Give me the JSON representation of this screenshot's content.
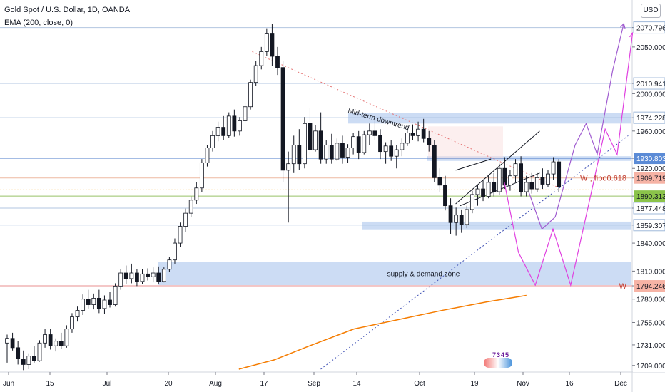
{
  "header": {
    "title": "Gold Spot / U.S. Dollar, 1D, OANDA",
    "indicator": "EMA (200, close, 0)",
    "currency": "USD"
  },
  "logo_text": "7345",
  "chart_data": {
    "type": "candlestick",
    "y_range": [
      1705,
      2100
    ],
    "y_axis_ticks": [
      "2050.000",
      "2010.941",
      "2000.000",
      "1974.228",
      "1960.000",
      "1930.803",
      "1920.000",
      "1909.719",
      "1890.313",
      "1877.448",
      "1859.307",
      "1840.000",
      "1810.000",
      "1794.246",
      "1780.000",
      "1755.000",
      "1731.000",
      "1709.000"
    ],
    "x_axis_ticks": [
      "Jun",
      "15",
      "Jul",
      "20",
      "Aug",
      "17",
      "Sep",
      "14",
      "Oct",
      "19",
      "Nov",
      "16",
      "Dec"
    ],
    "price_labels": [
      {
        "value": 2070.796,
        "text": "2070.796",
        "style": "box"
      },
      {
        "value": 2050.0,
        "text": "2050.000",
        "style": "plain"
      },
      {
        "value": 2010.941,
        "text": "2010.941",
        "style": "box"
      },
      {
        "value": 2000.0,
        "text": "2000.000",
        "style": "plain"
      },
      {
        "value": 1974.228,
        "text": "1974.228",
        "style": "box"
      },
      {
        "value": 1960.0,
        "text": "1960.000",
        "style": "plain"
      },
      {
        "value": 1930.803,
        "text": "1930.803",
        "style": "box-blue"
      },
      {
        "value": 1920.0,
        "text": "1920.000",
        "style": "plain"
      },
      {
        "value": 1909.719,
        "text": "1909.719",
        "style": "box-red"
      },
      {
        "value": 1890.313,
        "text": "1890.313",
        "style": "box-green"
      },
      {
        "value": 1877.448,
        "text": "1877.448",
        "style": "box"
      },
      {
        "value": 1859.307,
        "text": "1859.307",
        "style": "box"
      },
      {
        "value": 1840.0,
        "text": "1840.000",
        "style": "plain"
      },
      {
        "value": 1810.0,
        "text": "1810.000",
        "style": "plain"
      },
      {
        "value": 1794.246,
        "text": "1794.246",
        "style": "box-red"
      },
      {
        "value": 1780.0,
        "text": "1780.000",
        "style": "plain"
      },
      {
        "value": 1755.0,
        "text": "1755.000",
        "style": "plain"
      },
      {
        "value": 1731.0,
        "text": "1731.000",
        "style": "plain"
      },
      {
        "value": 1709.0,
        "text": "1709.000",
        "style": "plain"
      }
    ],
    "horizontal_levels": [
      {
        "value": 2070.796,
        "color": "#9fb8d9"
      },
      {
        "value": 2010.941,
        "color": "#9fb8d9"
      },
      {
        "value": 1974.228,
        "color": "#9fb8d9"
      },
      {
        "value": 1930.803,
        "color": "#4a78c8"
      },
      {
        "value": 1909.719,
        "color": "#e8a88a"
      },
      {
        "value": 1890.313,
        "color": "#7cb342"
      },
      {
        "value": 1877.448,
        "color": "#9fb8d9"
      },
      {
        "value": 1859.307,
        "color": "#9fb8d9"
      },
      {
        "value": 1794.246,
        "color": "#e57373"
      }
    ],
    "zones": [
      {
        "x0": 222,
        "x1": 885,
        "top": 1820,
        "bottom": 1795,
        "label": "supply & demand zone"
      },
      {
        "x0": 508,
        "x1": 885,
        "top": 1863,
        "bottom": 1854,
        "label": ""
      },
      {
        "x0": 488,
        "x1": 885,
        "top": 1979,
        "bottom": 1968,
        "label": ""
      },
      {
        "x0": 598,
        "x1": 885,
        "top": 1933,
        "bottom": 1928,
        "label": ""
      }
    ],
    "annotations": [
      {
        "text": "Mid-term downtrend",
        "color": "#131722"
      },
      {
        "text": "W , fibo0.618",
        "color": "#c0392b"
      },
      {
        "text": "W",
        "color": "#c0392b"
      }
    ],
    "candles": [
      {
        "o": 1733,
        "h": 1742,
        "l": 1712,
        "c": 1738
      },
      {
        "o": 1738,
        "h": 1744,
        "l": 1725,
        "c": 1728
      },
      {
        "o": 1728,
        "h": 1735,
        "l": 1710,
        "c": 1716
      },
      {
        "o": 1716,
        "h": 1725,
        "l": 1704,
        "c": 1710
      },
      {
        "o": 1710,
        "h": 1722,
        "l": 1705,
        "c": 1719
      },
      {
        "o": 1719,
        "h": 1730,
        "l": 1712,
        "c": 1714
      },
      {
        "o": 1714,
        "h": 1736,
        "l": 1713,
        "c": 1733
      },
      {
        "o": 1733,
        "h": 1748,
        "l": 1728,
        "c": 1742
      },
      {
        "o": 1742,
        "h": 1748,
        "l": 1726,
        "c": 1730
      },
      {
        "o": 1730,
        "h": 1738,
        "l": 1724,
        "c": 1735
      },
      {
        "o": 1735,
        "h": 1744,
        "l": 1727,
        "c": 1730
      },
      {
        "o": 1730,
        "h": 1752,
        "l": 1728,
        "c": 1748
      },
      {
        "o": 1748,
        "h": 1765,
        "l": 1744,
        "c": 1761
      },
      {
        "o": 1761,
        "h": 1772,
        "l": 1756,
        "c": 1768
      },
      {
        "o": 1768,
        "h": 1785,
        "l": 1763,
        "c": 1780
      },
      {
        "o": 1780,
        "h": 1790,
        "l": 1770,
        "c": 1774
      },
      {
        "o": 1774,
        "h": 1786,
        "l": 1769,
        "c": 1781
      },
      {
        "o": 1781,
        "h": 1790,
        "l": 1765,
        "c": 1770
      },
      {
        "o": 1770,
        "h": 1784,
        "l": 1764,
        "c": 1779
      },
      {
        "o": 1779,
        "h": 1788,
        "l": 1771,
        "c": 1774
      },
      {
        "o": 1774,
        "h": 1797,
        "l": 1772,
        "c": 1794
      },
      {
        "o": 1794,
        "h": 1812,
        "l": 1790,
        "c": 1808
      },
      {
        "o": 1808,
        "h": 1816,
        "l": 1796,
        "c": 1802
      },
      {
        "o": 1802,
        "h": 1818,
        "l": 1797,
        "c": 1808
      },
      {
        "o": 1808,
        "h": 1812,
        "l": 1794,
        "c": 1799
      },
      {
        "o": 1799,
        "h": 1812,
        "l": 1796,
        "c": 1807
      },
      {
        "o": 1807,
        "h": 1813,
        "l": 1800,
        "c": 1804
      },
      {
        "o": 1804,
        "h": 1814,
        "l": 1798,
        "c": 1808
      },
      {
        "o": 1808,
        "h": 1815,
        "l": 1796,
        "c": 1799
      },
      {
        "o": 1799,
        "h": 1814,
        "l": 1798,
        "c": 1812
      },
      {
        "o": 1812,
        "h": 1825,
        "l": 1809,
        "c": 1822
      },
      {
        "o": 1822,
        "h": 1845,
        "l": 1818,
        "c": 1840
      },
      {
        "o": 1840,
        "h": 1862,
        "l": 1836,
        "c": 1858
      },
      {
        "o": 1858,
        "h": 1877,
        "l": 1852,
        "c": 1872
      },
      {
        "o": 1872,
        "h": 1890,
        "l": 1868,
        "c": 1886
      },
      {
        "o": 1886,
        "h": 1905,
        "l": 1882,
        "c": 1899
      },
      {
        "o": 1899,
        "h": 1930,
        "l": 1895,
        "c": 1926
      },
      {
        "o": 1926,
        "h": 1945,
        "l": 1922,
        "c": 1942
      },
      {
        "o": 1942,
        "h": 1960,
        "l": 1938,
        "c": 1955
      },
      {
        "o": 1955,
        "h": 1970,
        "l": 1949,
        "c": 1964
      },
      {
        "o": 1964,
        "h": 1976,
        "l": 1950,
        "c": 1955
      },
      {
        "o": 1955,
        "h": 1980,
        "l": 1953,
        "c": 1976
      },
      {
        "o": 1976,
        "h": 1983,
        "l": 1954,
        "c": 1960
      },
      {
        "o": 1960,
        "h": 1975,
        "l": 1955,
        "c": 1971
      },
      {
        "o": 1971,
        "h": 1990,
        "l": 1968,
        "c": 1986
      },
      {
        "o": 1986,
        "h": 2015,
        "l": 1983,
        "c": 2012
      },
      {
        "o": 2012,
        "h": 2035,
        "l": 2008,
        "c": 2030
      },
      {
        "o": 2030,
        "h": 2050,
        "l": 2026,
        "c": 2045
      },
      {
        "o": 2045,
        "h": 2070,
        "l": 2040,
        "c": 2064
      },
      {
        "o": 2064,
        "h": 2075,
        "l": 2030,
        "c": 2040
      },
      {
        "o": 2040,
        "h": 2050,
        "l": 2020,
        "c": 2028
      },
      {
        "o": 2028,
        "h": 2035,
        "l": 1905,
        "c": 1918
      },
      {
        "o": 1918,
        "h": 1938,
        "l": 1862,
        "c": 1925
      },
      {
        "o": 1925,
        "h": 1955,
        "l": 1915,
        "c": 1945
      },
      {
        "o": 1945,
        "h": 1962,
        "l": 1918,
        "c": 1925
      },
      {
        "o": 1925,
        "h": 1975,
        "l": 1920,
        "c": 1968
      },
      {
        "o": 1968,
        "h": 1985,
        "l": 1935,
        "c": 1940
      },
      {
        "o": 1940,
        "h": 1966,
        "l": 1938,
        "c": 1960
      },
      {
        "o": 1960,
        "h": 1980,
        "l": 1925,
        "c": 1930
      },
      {
        "o": 1930,
        "h": 1950,
        "l": 1925,
        "c": 1945
      },
      {
        "o": 1945,
        "h": 1957,
        "l": 1925,
        "c": 1930
      },
      {
        "o": 1930,
        "h": 1952,
        "l": 1928,
        "c": 1947
      },
      {
        "o": 1947,
        "h": 1955,
        "l": 1925,
        "c": 1932
      },
      {
        "o": 1932,
        "h": 1946,
        "l": 1926,
        "c": 1942
      },
      {
        "o": 1942,
        "h": 1958,
        "l": 1935,
        "c": 1954
      },
      {
        "o": 1954,
        "h": 1960,
        "l": 1930,
        "c": 1937
      },
      {
        "o": 1937,
        "h": 1960,
        "l": 1935,
        "c": 1956
      },
      {
        "o": 1956,
        "h": 1968,
        "l": 1945,
        "c": 1960
      },
      {
        "o": 1960,
        "h": 1972,
        "l": 1950,
        "c": 1955
      },
      {
        "o": 1955,
        "h": 1962,
        "l": 1930,
        "c": 1938
      },
      {
        "o": 1938,
        "h": 1948,
        "l": 1925,
        "c": 1944
      },
      {
        "o": 1944,
        "h": 1950,
        "l": 1928,
        "c": 1933
      },
      {
        "o": 1933,
        "h": 1945,
        "l": 1920,
        "c": 1940
      },
      {
        "o": 1940,
        "h": 1952,
        "l": 1933,
        "c": 1947
      },
      {
        "o": 1947,
        "h": 1962,
        "l": 1944,
        "c": 1958
      },
      {
        "o": 1958,
        "h": 1967,
        "l": 1950,
        "c": 1955
      },
      {
        "o": 1955,
        "h": 1970,
        "l": 1949,
        "c": 1962
      },
      {
        "o": 1962,
        "h": 1973,
        "l": 1948,
        "c": 1952
      },
      {
        "o": 1952,
        "h": 1960,
        "l": 1938,
        "c": 1945
      },
      {
        "o": 1945,
        "h": 1950,
        "l": 1905,
        "c": 1910
      },
      {
        "o": 1910,
        "h": 1920,
        "l": 1895,
        "c": 1902
      },
      {
        "o": 1902,
        "h": 1912,
        "l": 1875,
        "c": 1880
      },
      {
        "o": 1880,
        "h": 1888,
        "l": 1850,
        "c": 1862
      },
      {
        "o": 1862,
        "h": 1878,
        "l": 1848,
        "c": 1870
      },
      {
        "o": 1870,
        "h": 1876,
        "l": 1851,
        "c": 1860
      },
      {
        "o": 1860,
        "h": 1880,
        "l": 1856,
        "c": 1876
      },
      {
        "o": 1876,
        "h": 1896,
        "l": 1872,
        "c": 1892
      },
      {
        "o": 1892,
        "h": 1902,
        "l": 1880,
        "c": 1898
      },
      {
        "o": 1898,
        "h": 1908,
        "l": 1885,
        "c": 1890
      },
      {
        "o": 1890,
        "h": 1912,
        "l": 1888,
        "c": 1905
      },
      {
        "o": 1905,
        "h": 1915,
        "l": 1890,
        "c": 1895
      },
      {
        "o": 1895,
        "h": 1925,
        "l": 1892,
        "c": 1920
      },
      {
        "o": 1920,
        "h": 1932,
        "l": 1898,
        "c": 1902
      },
      {
        "o": 1902,
        "h": 1918,
        "l": 1896,
        "c": 1912
      },
      {
        "o": 1912,
        "h": 1930,
        "l": 1905,
        "c": 1925
      },
      {
        "o": 1925,
        "h": 1933,
        "l": 1890,
        "c": 1895
      },
      {
        "o": 1895,
        "h": 1912,
        "l": 1890,
        "c": 1905
      },
      {
        "o": 1905,
        "h": 1915,
        "l": 1893,
        "c": 1898
      },
      {
        "o": 1898,
        "h": 1915,
        "l": 1895,
        "c": 1910
      },
      {
        "o": 1910,
        "h": 1920,
        "l": 1898,
        "c": 1903
      },
      {
        "o": 1903,
        "h": 1918,
        "l": 1900,
        "c": 1914
      },
      {
        "o": 1914,
        "h": 1932,
        "l": 1908,
        "c": 1927
      },
      {
        "o": 1927,
        "h": 1930,
        "l": 1895,
        "c": 1900
      }
    ],
    "ema": [
      [
        540,
        1705
      ],
      [
        620,
        1715
      ],
      [
        700,
        1730
      ],
      [
        800,
        1748
      ],
      [
        900,
        1758
      ],
      [
        1000,
        1768
      ],
      [
        1100,
        1777
      ],
      [
        1190,
        1784
      ]
    ],
    "projection_paths": [
      {
        "points": [
          [
            1195,
            1895
          ],
          [
            1225,
            1855
          ],
          [
            1255,
            1868
          ],
          [
            1300,
            1945
          ],
          [
            1325,
            1968
          ],
          [
            1350,
            1935
          ],
          [
            1385,
            2025
          ],
          [
            1410,
            2075
          ]
        ],
        "color": "#a05cd0"
      },
      {
        "points": [
          [
            1140,
            1905
          ],
          [
            1172,
            1830
          ],
          [
            1210,
            1795
          ],
          [
            1250,
            1855
          ],
          [
            1290,
            1795
          ],
          [
            1330,
            1880
          ],
          [
            1368,
            1962
          ],
          [
            1395,
            1935
          ],
          [
            1430,
            2065
          ]
        ],
        "color": "#e040e0"
      }
    ],
    "trendlines": [
      {
        "from": [
          570,
          2045
        ],
        "to": [
          1260,
          1900
        ],
        "color": "#e57373",
        "dash": "2,3"
      },
      {
        "from": [
          725,
          1705
        ],
        "to": [
          1420,
          1955
        ],
        "color": "#3f51b5",
        "dash": "2,3"
      },
      {
        "from": [
          1030,
          1882
        ],
        "to": [
          1220,
          1960
        ],
        "color": "#131722",
        "dash": ""
      },
      {
        "from": [
          1030,
          1918
        ],
        "to": [
          1110,
          1930
        ],
        "color": "#131722",
        "dash": ""
      },
      {
        "from": [
          1040,
          1880
        ],
        "to": [
          1220,
          1915
        ],
        "color": "#131722",
        "dash": ""
      }
    ]
  }
}
